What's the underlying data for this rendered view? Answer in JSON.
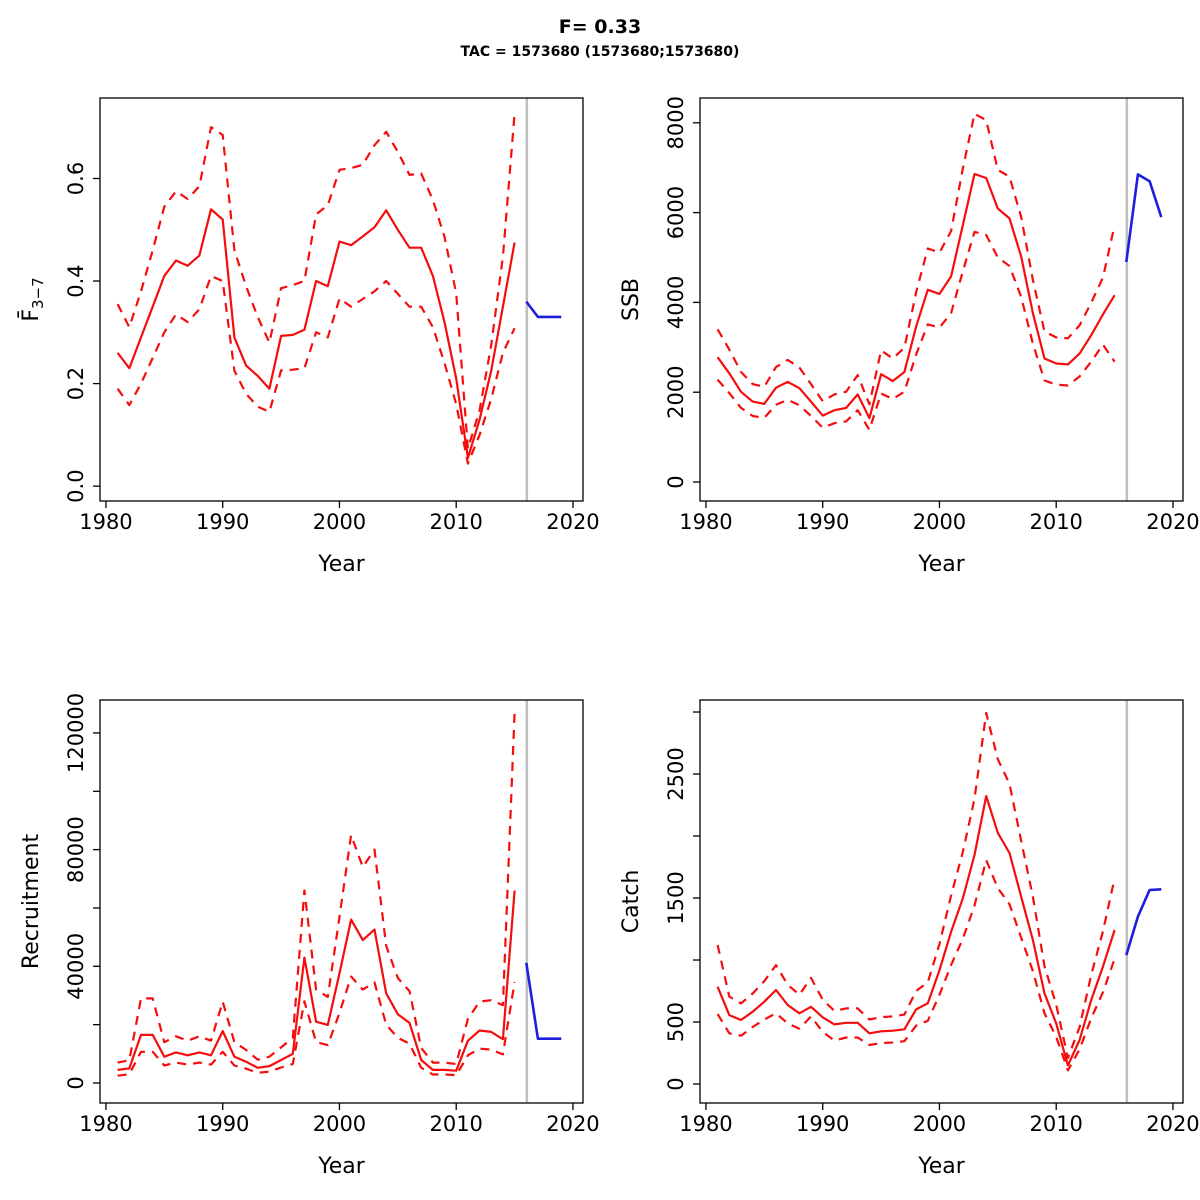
{
  "header": {
    "title": "F= 0.33",
    "subtitle": "TAC = 1573680 (1573680;1573680)"
  },
  "colors": {
    "history_line": "#f50d0d",
    "forecast_line": "#1e1edc",
    "reference_line": "#bfbfbf",
    "axis": "#000000"
  },
  "chart_data": [
    {
      "id": "fbar",
      "type": "line",
      "panel_position": "top-left",
      "ylabel": "F̄3−7",
      "ylabel_main": "F̄",
      "ylabel_sub": "3−7",
      "xlabel": "Year",
      "xlim": [
        1979.49,
        2020.86
      ],
      "ylim": [
        -0.029,
        0.757
      ],
      "xticks": [
        1980,
        1990,
        2000,
        2010,
        2020
      ],
      "yticks": [
        {
          "value": 0.0,
          "label": "0.0"
        },
        {
          "value": 0.2,
          "label": "0.2"
        },
        {
          "value": 0.4,
          "label": "0.4"
        },
        {
          "value": 0.6,
          "label": "0.6"
        }
      ],
      "vline_x": 2016.05,
      "years": [
        1981,
        1982,
        1983,
        1984,
        1985,
        1986,
        1987,
        1988,
        1989,
        1990,
        1991,
        1992,
        1993,
        1994,
        1995,
        1996,
        1997,
        1998,
        1999,
        2000,
        2001,
        2002,
        2003,
        2004,
        2005,
        2006,
        2007,
        2008,
        2009,
        2010,
        2011,
        2012,
        2013,
        2014,
        2015
      ],
      "forecast_years": [
        2016,
        2017,
        2018,
        2019
      ],
      "series": [
        {
          "name": "median",
          "role": "history",
          "style": "solid",
          "values": [
            0.26,
            0.23,
            0.29,
            0.35,
            0.41,
            0.44,
            0.43,
            0.45,
            0.54,
            0.52,
            0.29,
            0.235,
            0.215,
            0.19,
            0.293,
            0.295,
            0.305,
            0.4,
            0.39,
            0.477,
            0.47,
            0.487,
            0.505,
            0.538,
            0.5,
            0.465,
            0.465,
            0.41,
            0.32,
            0.21,
            0.055,
            0.13,
            0.225,
            0.35,
            0.475
          ]
        },
        {
          "name": "lower-ci",
          "role": "history",
          "style": "dashed",
          "values": [
            0.19,
            0.158,
            0.2,
            0.25,
            0.3,
            0.335,
            0.32,
            0.345,
            0.41,
            0.4,
            0.225,
            0.18,
            0.155,
            0.145,
            0.226,
            0.227,
            0.23,
            0.3,
            0.29,
            0.366,
            0.35,
            0.365,
            0.38,
            0.4,
            0.375,
            0.35,
            0.35,
            0.31,
            0.24,
            0.16,
            0.044,
            0.1,
            0.17,
            0.26,
            0.308
          ]
        },
        {
          "name": "upper-ci",
          "role": "history",
          "style": "dashed",
          "values": [
            0.355,
            0.31,
            0.38,
            0.46,
            0.545,
            0.575,
            0.56,
            0.585,
            0.7,
            0.685,
            0.46,
            0.39,
            0.33,
            0.28,
            0.386,
            0.392,
            0.4,
            0.53,
            0.548,
            0.617,
            0.62,
            0.627,
            0.665,
            0.691,
            0.652,
            0.607,
            0.61,
            0.558,
            0.486,
            0.376,
            0.073,
            0.148,
            0.275,
            0.447,
            0.727
          ]
        },
        {
          "name": "forecast",
          "role": "forecast",
          "style": "solid",
          "values": [
            0.36,
            0.33,
            0.33,
            0.33
          ]
        }
      ]
    },
    {
      "id": "ssb",
      "type": "line",
      "panel_position": "top-right",
      "ylabel": "SSB",
      "ylabel_main": "SSB",
      "ylabel_sub": "",
      "xlabel": "Year",
      "xlim": [
        1979.49,
        2020.86
      ],
      "ylim": [
        -423,
        8552
      ],
      "xticks": [
        1980,
        1990,
        2000,
        2010,
        2020
      ],
      "yticks": [
        {
          "value": 0,
          "label": "0"
        },
        {
          "value": 2000,
          "label": "2000"
        },
        {
          "value": 4000,
          "label": "4000"
        },
        {
          "value": 6000,
          "label": "6000"
        },
        {
          "value": 8000,
          "label": "8000"
        }
      ],
      "vline_x": 2016.05,
      "years": [
        1981,
        1982,
        1983,
        1984,
        1985,
        1986,
        1987,
        1988,
        1989,
        1990,
        1991,
        1992,
        1993,
        1994,
        1995,
        1996,
        1997,
        1998,
        1999,
        2000,
        2001,
        2002,
        2003,
        2004,
        2005,
        2006,
        2007,
        2008,
        2009,
        2010,
        2011,
        2012,
        2013,
        2014,
        2015
      ],
      "forecast_years": [
        2016,
        2017,
        2018,
        2019
      ],
      "series": [
        {
          "name": "median",
          "role": "history",
          "style": "solid",
          "values": [
            2780,
            2420,
            2010,
            1790,
            1740,
            2100,
            2230,
            2090,
            1790,
            1480,
            1600,
            1650,
            1950,
            1420,
            2400,
            2250,
            2450,
            3460,
            4280,
            4190,
            4580,
            5720,
            6860,
            6770,
            6090,
            5870,
            5020,
            3760,
            2750,
            2640,
            2620,
            2860,
            3270,
            3730,
            4160
          ]
        },
        {
          "name": "lower-ci",
          "role": "history",
          "style": "dashed",
          "values": [
            2280,
            1980,
            1650,
            1470,
            1430,
            1720,
            1830,
            1710,
            1470,
            1210,
            1310,
            1350,
            1600,
            1160,
            1970,
            1850,
            2010,
            2840,
            3510,
            3440,
            3760,
            4690,
            5570,
            5500,
            5000,
            4810,
            4120,
            3080,
            2260,
            2170,
            2150,
            2350,
            2680,
            3060,
            2680
          ]
        },
        {
          "name": "upper-ci",
          "role": "history",
          "style": "dashed",
          "values": [
            3400,
            2950,
            2450,
            2180,
            2120,
            2560,
            2720,
            2550,
            2180,
            1800,
            1950,
            2010,
            2380,
            1730,
            2930,
            2750,
            2990,
            4220,
            5200,
            5110,
            5590,
            6980,
            8200,
            8060,
            6950,
            6800,
            5900,
            4500,
            3350,
            3220,
            3200,
            3490,
            3990,
            4550,
            5720
          ]
        },
        {
          "name": "forecast",
          "role": "forecast",
          "style": "solid",
          "values": [
            4900,
            6850,
            6700,
            5900
          ]
        }
      ]
    },
    {
      "id": "recruitment",
      "type": "line",
      "panel_position": "bottom-left",
      "ylabel": "Recruitment",
      "ylabel_main": "Recruitment",
      "ylabel_sub": "",
      "xlabel": "Year",
      "xlim": [
        1979.49,
        2020.86
      ],
      "ylim": [
        -6856,
        131290
      ],
      "xticks": [
        1980,
        1990,
        2000,
        2010,
        2020
      ],
      "yticks": [
        {
          "value": 0,
          "label": "0"
        },
        {
          "value": 20000,
          "label": ""
        },
        {
          "value": 40000,
          "label": "40000"
        },
        {
          "value": 60000,
          "label": ""
        },
        {
          "value": 80000,
          "label": "80000"
        },
        {
          "value": 100000,
          "label": ""
        },
        {
          "value": 120000,
          "label": "120000"
        }
      ],
      "vline_x": 2016.05,
      "years": [
        1981,
        1982,
        1983,
        1984,
        1985,
        1986,
        1987,
        1988,
        1989,
        1990,
        1991,
        1992,
        1993,
        1994,
        1995,
        1996,
        1997,
        1998,
        1999,
        2000,
        2001,
        2002,
        2003,
        2004,
        2005,
        2006,
        2007,
        2008,
        2009,
        2010,
        2011,
        2012,
        2013,
        2014,
        2015
      ],
      "forecast_years": [
        2016,
        2017,
        2018,
        2019
      ],
      "series": [
        {
          "name": "median",
          "role": "history",
          "style": "solid",
          "values": [
            4500,
            5000,
            16500,
            16500,
            9000,
            10500,
            9500,
            10500,
            9500,
            17800,
            9000,
            7300,
            5200,
            5800,
            7900,
            10000,
            43000,
            21000,
            19900,
            37600,
            56000,
            49000,
            52600,
            30700,
            23600,
            20600,
            7900,
            4500,
            4500,
            4200,
            14500,
            18000,
            17500,
            15000,
            66000
          ]
        },
        {
          "name": "lower-ci",
          "role": "history",
          "style": "dashed",
          "values": [
            2500,
            3000,
            10700,
            10700,
            6000,
            7000,
            6300,
            7000,
            6300,
            10700,
            6000,
            4900,
            3500,
            3900,
            5300,
            6500,
            28000,
            14000,
            13000,
            24000,
            36500,
            32000,
            34500,
            20000,
            15500,
            13500,
            5200,
            2900,
            2900,
            2700,
            9500,
            11800,
            11400,
            9800,
            34600
          ]
        },
        {
          "name": "upper-ci",
          "role": "history",
          "style": "dashed",
          "values": [
            7000,
            7800,
            29000,
            29000,
            14000,
            16000,
            14500,
            16000,
            14500,
            27900,
            14000,
            11300,
            8000,
            9000,
            12200,
            15500,
            66000,
            32000,
            29500,
            57000,
            85000,
            74000,
            80000,
            47000,
            36000,
            31500,
            12000,
            7000,
            7000,
            6500,
            22000,
            27900,
            28400,
            26700,
            127000
          ]
        },
        {
          "name": "forecast",
          "role": "forecast",
          "style": "solid",
          "values": [
            41200,
            15200,
            15200,
            15200
          ]
        }
      ]
    },
    {
      "id": "catch",
      "type": "line",
      "panel_position": "bottom-right",
      "ylabel": "Catch",
      "ylabel_main": "Catch",
      "ylabel_sub": "",
      "xlabel": "Year",
      "xlim": [
        1979.49,
        2020.86
      ],
      "ylim": [
        -153,
        3097
      ],
      "xticks": [
        1980,
        1990,
        2000,
        2010,
        2020
      ],
      "yticks": [
        {
          "value": 0,
          "label": "0"
        },
        {
          "value": 500,
          "label": "500"
        },
        {
          "value": 1000,
          "label": ""
        },
        {
          "value": 1500,
          "label": "1500"
        },
        {
          "value": 2000,
          "label": ""
        },
        {
          "value": 2500,
          "label": "2500"
        },
        {
          "value": 3000,
          "label": ""
        }
      ],
      "vline_x": 2016.05,
      "years": [
        1981,
        1982,
        1983,
        1984,
        1985,
        1986,
        1987,
        1988,
        1989,
        1990,
        1991,
        1992,
        1993,
        1994,
        1995,
        1996,
        1997,
        1998,
        1999,
        2000,
        2001,
        2002,
        2003,
        2004,
        2005,
        2006,
        2007,
        2008,
        2009,
        2010,
        2011,
        2012,
        2013,
        2014,
        2015
      ],
      "forecast_years": [
        2016,
        2017,
        2018,
        2019
      ],
      "series": [
        {
          "name": "median",
          "role": "history",
          "style": "solid",
          "values": [
            785,
            556,
            516,
            583,
            664,
            758,
            637,
            570,
            623,
            538,
            481,
            494,
            494,
            409,
            425,
            430,
            441,
            602,
            651,
            919,
            1228,
            1497,
            1847,
            2322,
            2026,
            1863,
            1510,
            1161,
            731,
            489,
            150,
            355,
            677,
            946,
            1242
          ]
        },
        {
          "name": "lower-ci",
          "role": "history",
          "style": "dashed",
          "values": [
            565,
            409,
            390,
            460,
            520,
            570,
            490,
            445,
            545,
            420,
            350,
            375,
            375,
            315,
            330,
            335,
            345,
            470,
            510,
            720,
            960,
            1170,
            1440,
            1806,
            1580,
            1450,
            1180,
            910,
            570,
            380,
            110,
            280,
            530,
            740,
            1010
          ]
        },
        {
          "name": "upper-ci",
          "role": "history",
          "style": "dashed",
          "values": [
            1121,
            705,
            650,
            730,
            830,
            959,
            800,
            720,
            856,
            680,
            590,
            610,
            610,
            520,
            540,
            545,
            560,
            750,
            820,
            1130,
            1520,
            1870,
            2300,
            2992,
            2620,
            2420,
            1960,
            1510,
            950,
            640,
            210,
            460,
            880,
            1230,
            1660
          ]
        },
        {
          "name": "forecast",
          "role": "forecast",
          "style": "solid",
          "values": [
            1040,
            1350,
            1565,
            1570
          ]
        }
      ]
    }
  ]
}
